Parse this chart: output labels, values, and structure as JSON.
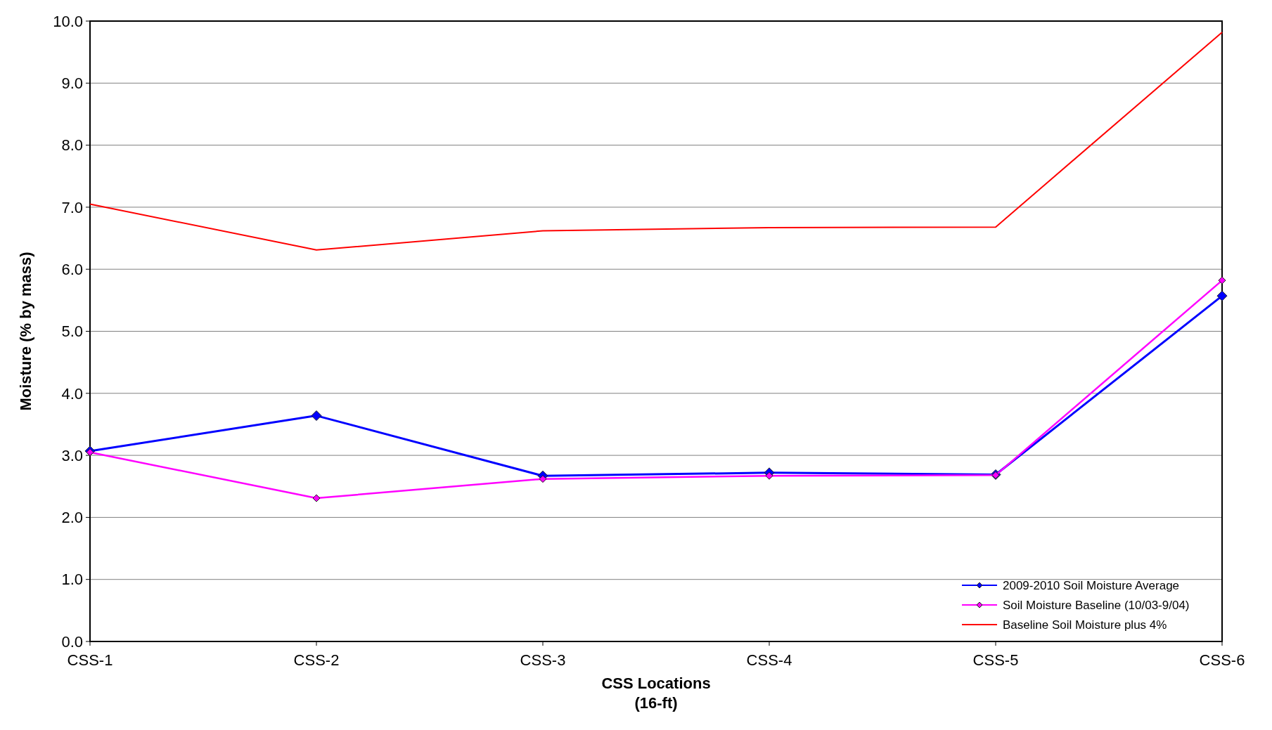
{
  "chart_data": {
    "type": "line",
    "xlabel": "CSS Locations\n(16-ft)",
    "ylabel": "Moisture (% by mass)",
    "categories": [
      "CSS-1",
      "CSS-2",
      "CSS-3",
      "CSS-4",
      "CSS-5",
      "CSS-6"
    ],
    "series": [
      {
        "name": "2009-2010 Soil Moisture Average",
        "color": "#0000ff",
        "marker": "diamond",
        "values": [
          3.07,
          3.64,
          2.67,
          2.72,
          2.69,
          5.57
        ]
      },
      {
        "name": "Soil Moisture Baseline (10/03-9/04)",
        "color": "#ff00ff",
        "marker": "diamond",
        "values": [
          3.05,
          2.31,
          2.62,
          2.67,
          2.68,
          5.82
        ]
      },
      {
        "name": "Baseline Soil Moisture plus 4%",
        "color": "#ff0000",
        "marker": "none",
        "values": [
          7.05,
          6.31,
          6.62,
          6.67,
          6.68,
          9.82
        ]
      }
    ],
    "ylim": [
      0,
      10
    ],
    "yticks": [
      {
        "value": 0,
        "label": "0.0"
      },
      {
        "value": 1,
        "label": "1.0"
      },
      {
        "value": 2,
        "label": "2.0"
      },
      {
        "value": 3,
        "label": "3.0"
      },
      {
        "value": 4,
        "label": "4.0"
      },
      {
        "value": 5,
        "label": "5.0"
      },
      {
        "value": 6,
        "label": "6.0"
      },
      {
        "value": 7,
        "label": "7.0"
      },
      {
        "value": 8,
        "label": "8.0"
      },
      {
        "value": 9,
        "label": "9.0"
      },
      {
        "value": 10,
        "label": "10.0"
      }
    ],
    "grid": "y",
    "legend": "bottom right",
    "line_style": "solid"
  }
}
